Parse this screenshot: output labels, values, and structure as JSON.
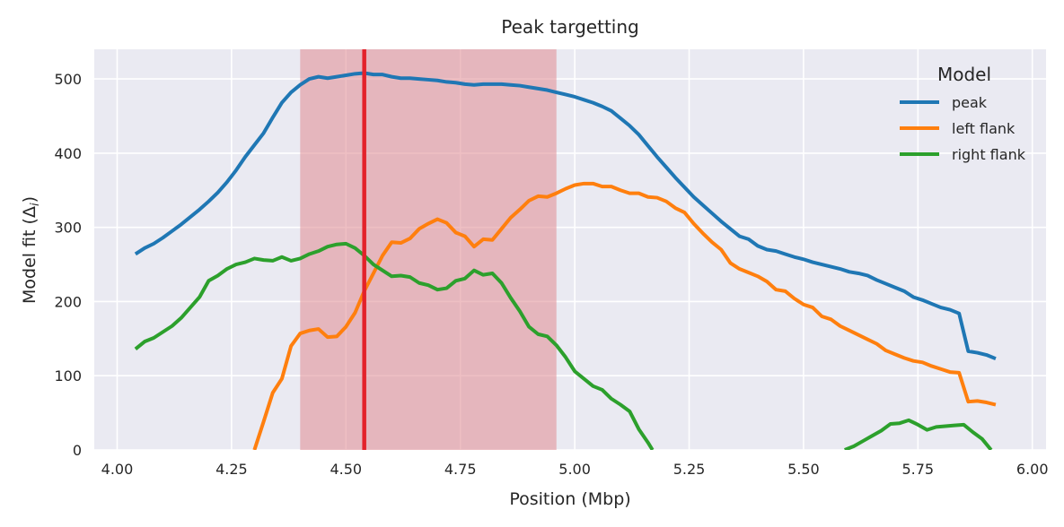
{
  "chart_data": {
    "type": "line",
    "title": "Peak targetting",
    "xlabel": "Position (Mbp)",
    "ylabel_main": "Model fit (Δ",
    "ylabel_sub": "i",
    "ylabel_end": ")",
    "xlim": [
      3.95,
      6.03
    ],
    "ylim": [
      0,
      540
    ],
    "xticks": [
      4.0,
      4.25,
      4.5,
      4.75,
      5.0,
      5.25,
      5.5,
      5.75,
      6.0
    ],
    "xtick_labels": [
      "4.00",
      "4.25",
      "4.50",
      "4.75",
      "5.00",
      "5.25",
      "5.50",
      "5.75",
      "6.00"
    ],
    "yticks": [
      0,
      100,
      200,
      300,
      400,
      500
    ],
    "ytick_labels": [
      "0",
      "100",
      "200",
      "300",
      "400",
      "500"
    ],
    "grid": true,
    "background": "#eaeaf2",
    "shaded_region": {
      "x_start": 4.4,
      "x_end": 4.96,
      "color": "#e08a92"
    },
    "vertical_line": {
      "x": 4.54,
      "color": "#e3222b"
    },
    "legend": {
      "title": "Model",
      "placement": "upper right"
    },
    "series": [
      {
        "name": "peak",
        "color": "#1f77b4",
        "points": [
          [
            4.04,
            264
          ],
          [
            4.06,
            272
          ],
          [
            4.08,
            278
          ],
          [
            4.1,
            286
          ],
          [
            4.12,
            295
          ],
          [
            4.14,
            304
          ],
          [
            4.16,
            314
          ],
          [
            4.18,
            324
          ],
          [
            4.2,
            335
          ],
          [
            4.22,
            347
          ],
          [
            4.24,
            361
          ],
          [
            4.26,
            377
          ],
          [
            4.28,
            395
          ],
          [
            4.3,
            411
          ],
          [
            4.32,
            427
          ],
          [
            4.34,
            448
          ],
          [
            4.36,
            468
          ],
          [
            4.38,
            482
          ],
          [
            4.4,
            492
          ],
          [
            4.42,
            500
          ],
          [
            4.44,
            503
          ],
          [
            4.46,
            501
          ],
          [
            4.48,
            503
          ],
          [
            4.5,
            505
          ],
          [
            4.52,
            507
          ],
          [
            4.54,
            508
          ],
          [
            4.56,
            506
          ],
          [
            4.58,
            506
          ],
          [
            4.6,
            503
          ],
          [
            4.62,
            501
          ],
          [
            4.64,
            501
          ],
          [
            4.66,
            500
          ],
          [
            4.68,
            499
          ],
          [
            4.7,
            498
          ],
          [
            4.72,
            496
          ],
          [
            4.74,
            495
          ],
          [
            4.76,
            493
          ],
          [
            4.78,
            492
          ],
          [
            4.8,
            493
          ],
          [
            4.82,
            493
          ],
          [
            4.84,
            493
          ],
          [
            4.86,
            492
          ],
          [
            4.88,
            491
          ],
          [
            4.9,
            489
          ],
          [
            4.92,
            487
          ],
          [
            4.94,
            485
          ],
          [
            4.96,
            482
          ],
          [
            4.98,
            479
          ],
          [
            5.0,
            476
          ],
          [
            5.02,
            472
          ],
          [
            5.04,
            468
          ],
          [
            5.06,
            463
          ],
          [
            5.08,
            457
          ],
          [
            5.1,
            447
          ],
          [
            5.12,
            437
          ],
          [
            5.14,
            425
          ],
          [
            5.16,
            410
          ],
          [
            5.18,
            395
          ],
          [
            5.2,
            381
          ],
          [
            5.22,
            367
          ],
          [
            5.24,
            354
          ],
          [
            5.26,
            341
          ],
          [
            5.28,
            330
          ],
          [
            5.3,
            319
          ],
          [
            5.32,
            308
          ],
          [
            5.34,
            298
          ],
          [
            5.36,
            288
          ],
          [
            5.38,
            284
          ],
          [
            5.4,
            275
          ],
          [
            5.42,
            270
          ],
          [
            5.44,
            268
          ],
          [
            5.46,
            264
          ],
          [
            5.48,
            260
          ],
          [
            5.5,
            257
          ],
          [
            5.52,
            253
          ],
          [
            5.54,
            250
          ],
          [
            5.56,
            247
          ],
          [
            5.58,
            244
          ],
          [
            5.6,
            240
          ],
          [
            5.62,
            238
          ],
          [
            5.64,
            235
          ],
          [
            5.66,
            229
          ],
          [
            5.68,
            224
          ],
          [
            5.7,
            219
          ],
          [
            5.72,
            214
          ],
          [
            5.74,
            206
          ],
          [
            5.76,
            202
          ],
          [
            5.78,
            197
          ],
          [
            5.8,
            192
          ],
          [
            5.82,
            189
          ],
          [
            5.84,
            184
          ],
          [
            5.86,
            133
          ],
          [
            5.88,
            131
          ],
          [
            5.9,
            128
          ],
          [
            5.92,
            123
          ]
        ]
      },
      {
        "name": "left flank",
        "color": "#ff7f0e",
        "points": [
          [
            4.3,
            0
          ],
          [
            4.32,
            38
          ],
          [
            4.34,
            77
          ],
          [
            4.36,
            96
          ],
          [
            4.38,
            140
          ],
          [
            4.4,
            157
          ],
          [
            4.42,
            161
          ],
          [
            4.44,
            163
          ],
          [
            4.46,
            152
          ],
          [
            4.48,
            153
          ],
          [
            4.5,
            166
          ],
          [
            4.52,
            185
          ],
          [
            4.54,
            214
          ],
          [
            4.56,
            238
          ],
          [
            4.58,
            262
          ],
          [
            4.6,
            280
          ],
          [
            4.62,
            279
          ],
          [
            4.64,
            285
          ],
          [
            4.66,
            298
          ],
          [
            4.68,
            305
          ],
          [
            4.7,
            311
          ],
          [
            4.72,
            306
          ],
          [
            4.74,
            293
          ],
          [
            4.76,
            288
          ],
          [
            4.78,
            274
          ],
          [
            4.8,
            284
          ],
          [
            4.82,
            283
          ],
          [
            4.84,
            298
          ],
          [
            4.86,
            313
          ],
          [
            4.88,
            324
          ],
          [
            4.9,
            336
          ],
          [
            4.92,
            342
          ],
          [
            4.94,
            341
          ],
          [
            4.96,
            346
          ],
          [
            4.98,
            352
          ],
          [
            5.0,
            357
          ],
          [
            5.02,
            359
          ],
          [
            5.04,
            359
          ],
          [
            5.06,
            355
          ],
          [
            5.08,
            355
          ],
          [
            5.1,
            350
          ],
          [
            5.12,
            346
          ],
          [
            5.14,
            346
          ],
          [
            5.16,
            341
          ],
          [
            5.18,
            340
          ],
          [
            5.2,
            335
          ],
          [
            5.22,
            326
          ],
          [
            5.24,
            320
          ],
          [
            5.26,
            305
          ],
          [
            5.28,
            292
          ],
          [
            5.3,
            280
          ],
          [
            5.32,
            270
          ],
          [
            5.34,
            252
          ],
          [
            5.36,
            244
          ],
          [
            5.38,
            239
          ],
          [
            5.4,
            234
          ],
          [
            5.42,
            227
          ],
          [
            5.44,
            216
          ],
          [
            5.46,
            214
          ],
          [
            5.48,
            204
          ],
          [
            5.5,
            196
          ],
          [
            5.52,
            192
          ],
          [
            5.54,
            180
          ],
          [
            5.56,
            176
          ],
          [
            5.58,
            167
          ],
          [
            5.6,
            161
          ],
          [
            5.62,
            155
          ],
          [
            5.64,
            149
          ],
          [
            5.66,
            143
          ],
          [
            5.68,
            134
          ],
          [
            5.7,
            129
          ],
          [
            5.72,
            124
          ],
          [
            5.74,
            120
          ],
          [
            5.76,
            118
          ],
          [
            5.78,
            113
          ],
          [
            5.8,
            109
          ],
          [
            5.82,
            105
          ],
          [
            5.84,
            104
          ],
          [
            5.86,
            65
          ],
          [
            5.88,
            66
          ],
          [
            5.9,
            64
          ],
          [
            5.92,
            61
          ]
        ]
      },
      {
        "name": "right flank",
        "color": "#2ca02c",
        "points": [
          [
            4.04,
            136
          ],
          [
            4.06,
            146
          ],
          [
            4.08,
            151
          ],
          [
            4.1,
            159
          ],
          [
            4.12,
            167
          ],
          [
            4.14,
            178
          ],
          [
            4.16,
            192
          ],
          [
            4.18,
            206
          ],
          [
            4.2,
            228
          ],
          [
            4.22,
            235
          ],
          [
            4.24,
            244
          ],
          [
            4.26,
            250
          ],
          [
            4.28,
            253
          ],
          [
            4.3,
            258
          ],
          [
            4.32,
            256
          ],
          [
            4.34,
            255
          ],
          [
            4.36,
            260
          ],
          [
            4.38,
            255
          ],
          [
            4.4,
            258
          ],
          [
            4.42,
            264
          ],
          [
            4.44,
            268
          ],
          [
            4.46,
            274
          ],
          [
            4.48,
            277
          ],
          [
            4.5,
            278
          ],
          [
            4.52,
            272
          ],
          [
            4.54,
            262
          ],
          [
            4.56,
            250
          ],
          [
            4.58,
            242
          ],
          [
            4.6,
            234
          ],
          [
            4.62,
            235
          ],
          [
            4.64,
            233
          ],
          [
            4.66,
            225
          ],
          [
            4.68,
            222
          ],
          [
            4.7,
            216
          ],
          [
            4.72,
            218
          ],
          [
            4.74,
            228
          ],
          [
            4.76,
            231
          ],
          [
            4.78,
            242
          ],
          [
            4.8,
            236
          ],
          [
            4.82,
            238
          ],
          [
            4.84,
            225
          ],
          [
            4.86,
            205
          ],
          [
            4.88,
            187
          ],
          [
            4.9,
            166
          ],
          [
            4.92,
            156
          ],
          [
            4.94,
            153
          ],
          [
            4.96,
            141
          ],
          [
            4.98,
            125
          ],
          [
            5.0,
            106
          ],
          [
            5.02,
            96
          ],
          [
            5.04,
            86
          ],
          [
            5.06,
            81
          ],
          [
            5.08,
            69
          ],
          [
            5.1,
            61
          ],
          [
            5.12,
            52
          ],
          [
            5.14,
            28
          ],
          [
            5.16,
            10
          ],
          [
            5.17,
            0
          ],
          [
            null,
            null
          ],
          [
            5.59,
            0
          ],
          [
            5.61,
            5
          ],
          [
            5.63,
            12
          ],
          [
            5.65,
            19
          ],
          [
            5.67,
            26
          ],
          [
            5.69,
            35
          ],
          [
            5.71,
            36
          ],
          [
            5.73,
            40
          ],
          [
            5.75,
            34
          ],
          [
            5.77,
            27
          ],
          [
            5.79,
            31
          ],
          [
            5.81,
            32
          ],
          [
            5.83,
            33
          ],
          [
            5.85,
            34
          ],
          [
            5.87,
            24
          ],
          [
            5.89,
            15
          ],
          [
            5.91,
            0
          ]
        ]
      }
    ]
  }
}
